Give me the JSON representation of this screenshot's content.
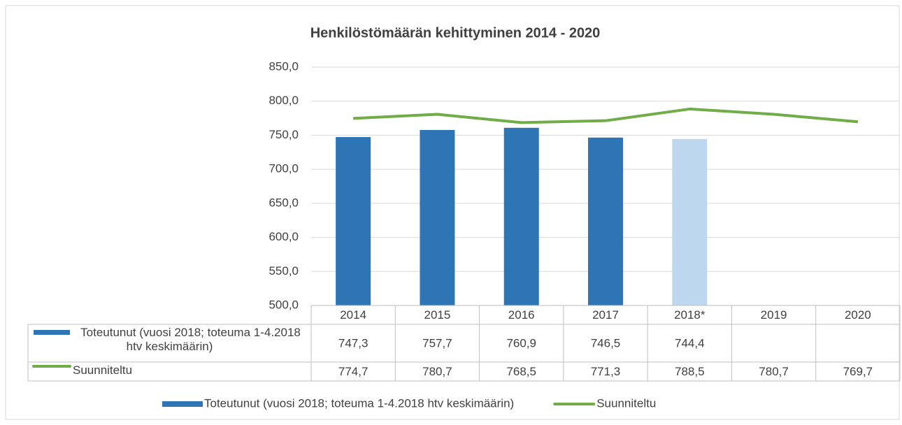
{
  "chart_data": {
    "type": "bar_line",
    "title": "Henkilöstömäärän kehittyminen 2014 - 2020",
    "categories": [
      "2014",
      "2015",
      "2016",
      "2017",
      "2018*",
      "2019",
      "2020"
    ],
    "series": [
      {
        "name": "Toteutunut (vuosi 2018; toteuma 1-4.2018 htv keskimäärin)",
        "type": "bar",
        "color": "#2e75b6",
        "point_colors": [
          "#2e75b6",
          "#2e75b6",
          "#2e75b6",
          "#2e75b6",
          "#bdd7ee",
          "#2e75b6",
          "#2e75b6"
        ],
        "values": [
          747.3,
          757.7,
          760.9,
          746.5,
          744.4,
          null,
          null
        ],
        "value_labels": [
          "747,3",
          "757,7",
          "760,9",
          "746,5",
          "744,4",
          null,
          null
        ]
      },
      {
        "name": "Suunniteltu",
        "type": "line",
        "color": "#70ad47",
        "values": [
          774.7,
          780.7,
          768.5,
          771.3,
          788.5,
          780.7,
          769.7
        ],
        "value_labels": [
          "774,7",
          "780,7",
          "768,5",
          "771,3",
          "788,5",
          "780,7",
          "769,7"
        ]
      }
    ],
    "ylim": [
      500,
      850
    ],
    "yticks": [
      {
        "value": 500,
        "label": "500,0"
      },
      {
        "value": 550,
        "label": "550,0"
      },
      {
        "value": 600,
        "label": "600,0"
      },
      {
        "value": 650,
        "label": "650,0"
      },
      {
        "value": 700,
        "label": "700,0"
      },
      {
        "value": 750,
        "label": "750,0"
      },
      {
        "value": 800,
        "label": "800,0"
      },
      {
        "value": 850,
        "label": "850,0"
      }
    ],
    "grid": true,
    "legend": "bottom",
    "data_table": true
  }
}
